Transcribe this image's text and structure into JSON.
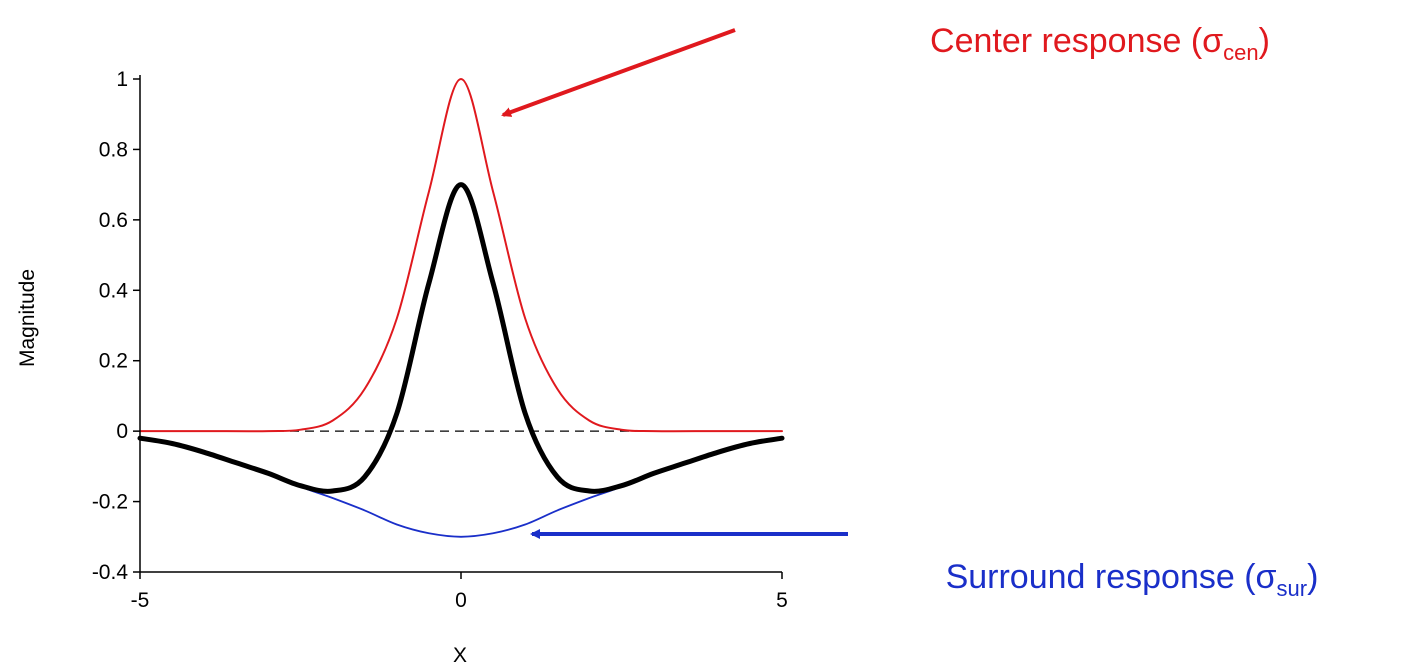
{
  "chart_data": {
    "type": "line",
    "title": "",
    "xlabel": "X",
    "ylabel": "Magnitude",
    "xlim": [
      -5,
      5
    ],
    "ylim": [
      -0.4,
      1
    ],
    "x_ticks": [
      -5,
      0,
      5
    ],
    "x_tick_labels": [
      "-5",
      "0",
      "5"
    ],
    "y_ticks": [
      -0.4,
      -0.2,
      0,
      0.2,
      0.4,
      0.6,
      0.8,
      1
    ],
    "y_tick_labels": [
      "-0.4",
      "-0.2",
      "0",
      "0.2",
      "0.4",
      "0.6",
      "0.8",
      "1"
    ],
    "grid": false,
    "legend": "none",
    "reference_line": {
      "y": 0,
      "style": "dashed",
      "color": "#000000"
    },
    "series": [
      {
        "id": "center",
        "color": "#e0191e",
        "x": [
          -5,
          -4,
          -3,
          -2.5,
          -2,
          -1.5,
          -1,
          -0.5,
          0,
          0.5,
          1,
          1.5,
          2,
          2.5,
          3,
          4,
          5
        ],
        "values": [
          0,
          0,
          0,
          0.004,
          0.03,
          0.12,
          0.32,
          0.68,
          1.0,
          0.68,
          0.32,
          0.12,
          0.03,
          0.004,
          0,
          0,
          0
        ]
      },
      {
        "id": "combined",
        "color": "#000000",
        "x": [
          -5,
          -4.5,
          -4,
          -3.5,
          -3,
          -2.5,
          -2,
          -1.5,
          -1,
          -0.5,
          0,
          0.5,
          1,
          1.5,
          2,
          2.5,
          3,
          3.5,
          4,
          4.5,
          5
        ],
        "values": [
          -0.02,
          -0.035,
          -0.06,
          -0.09,
          -0.12,
          -0.155,
          -0.17,
          -0.13,
          0.05,
          0.42,
          0.7,
          0.42,
          0.05,
          -0.13,
          -0.17,
          -0.155,
          -0.12,
          -0.09,
          -0.06,
          -0.035,
          -0.02
        ]
      },
      {
        "id": "surround",
        "color": "#1a2fc9",
        "x": [
          -2.4,
          -2,
          -1.5,
          -1,
          -0.5,
          0,
          0.5,
          1,
          1.5,
          2,
          2.4
        ],
        "values": [
          -0.165,
          -0.19,
          -0.225,
          -0.265,
          -0.29,
          -0.3,
          -0.29,
          -0.265,
          -0.225,
          -0.19,
          -0.165
        ]
      }
    ],
    "annotations": [
      {
        "id": "center",
        "label_prefix": "Center response (σ",
        "label_sub": "cen",
        "label_suffix": ")",
        "color": "#e0191e",
        "points_to": {
          "x": 0.2,
          "y": 0.9
        }
      },
      {
        "id": "surround",
        "label_prefix": "Surround response (σ",
        "label_sub": "sur",
        "label_suffix": ")",
        "color": "#1a2fc9",
        "points_to": {
          "x": 0.6,
          "y": -0.29
        }
      }
    ]
  }
}
